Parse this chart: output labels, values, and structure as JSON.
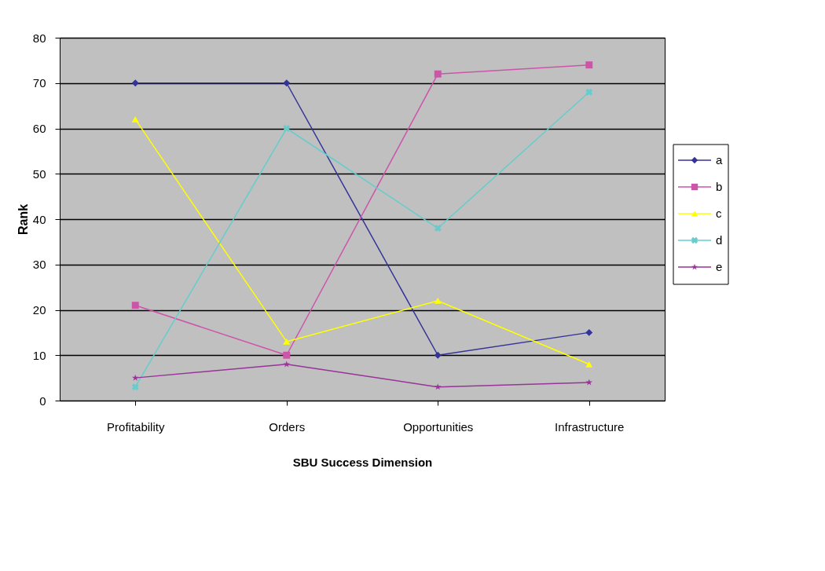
{
  "chart_data": {
    "type": "line",
    "xlabel": "SBU Success Dimension",
    "ylabel": "Rank",
    "categories": [
      "Profitability",
      "Orders",
      "Opportunities",
      "Infrastructure"
    ],
    "series": [
      {
        "name": "a",
        "color": "#333399",
        "marker": "diamond",
        "values": [
          70,
          70,
          10,
          15
        ]
      },
      {
        "name": "b",
        "color": "#cc55aa",
        "marker": "square",
        "values": [
          21,
          10,
          72,
          74
        ]
      },
      {
        "name": "c",
        "color": "#ffff00",
        "marker": "triangle",
        "values": [
          62,
          13,
          22,
          8
        ]
      },
      {
        "name": "d",
        "color": "#66cccc",
        "marker": "cross",
        "values": [
          3,
          60,
          38,
          68
        ]
      },
      {
        "name": "e",
        "color": "#993399",
        "marker": "star",
        "values": [
          5,
          8,
          3,
          4
        ]
      }
    ],
    "ylim": [
      0,
      80
    ],
    "yticks": [
      0,
      10,
      20,
      30,
      40,
      50,
      60,
      70,
      80
    ],
    "grid": "y",
    "legend": "right"
  }
}
